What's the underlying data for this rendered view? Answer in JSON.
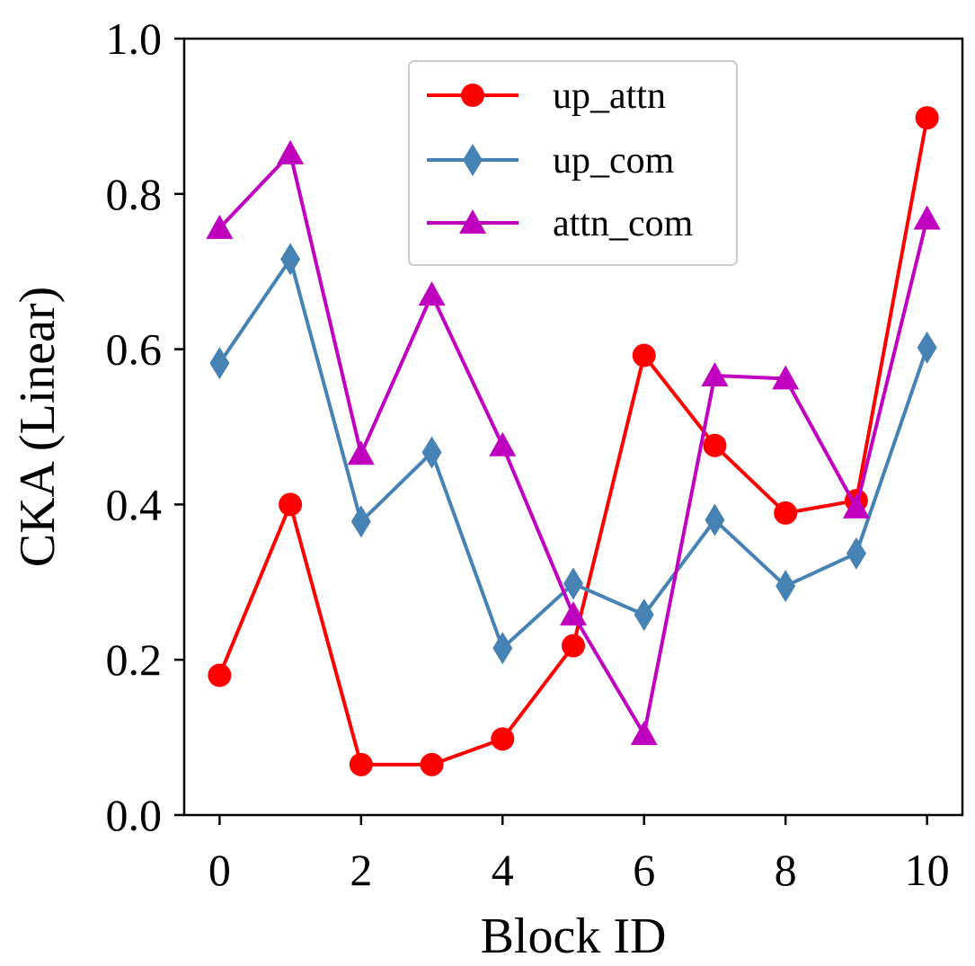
{
  "chart_data": {
    "type": "line",
    "title": "",
    "xlabel": "Block ID",
    "ylabel": "CKA (Linear)",
    "xlim": [
      -0.5,
      10.5
    ],
    "ylim": [
      0.0,
      1.0
    ],
    "x": [
      0,
      1,
      2,
      3,
      4,
      5,
      6,
      7,
      8,
      9,
      10
    ],
    "xticks": [
      0,
      2,
      4,
      6,
      8,
      10
    ],
    "xtick_labels": [
      "0",
      "2",
      "4",
      "6",
      "8",
      "10"
    ],
    "yticks": [
      0.0,
      0.2,
      0.4,
      0.6,
      0.8,
      1.0
    ],
    "ytick_labels": [
      "0.0",
      "0.2",
      "0.4",
      "0.6",
      "0.8",
      "1.0"
    ],
    "grid": false,
    "legend_position": "top-center",
    "series": [
      {
        "name": "up_attn",
        "color": "#ff0000",
        "marker": "circle",
        "values": [
          0.18,
          0.4,
          0.065,
          0.065,
          0.098,
          0.218,
          0.592,
          0.476,
          0.389,
          0.405,
          0.898
        ]
      },
      {
        "name": "up_com",
        "color": "#4682b4",
        "marker": "diamond",
        "values": [
          0.582,
          0.716,
          0.378,
          0.467,
          0.215,
          0.298,
          0.258,
          0.38,
          0.295,
          0.337,
          0.602
        ]
      },
      {
        "name": "attn_com",
        "color": "#bf00bf",
        "marker": "triangle",
        "values": [
          0.756,
          0.852,
          0.465,
          0.67,
          0.476,
          0.258,
          0.104,
          0.566,
          0.562,
          0.396,
          0.768
        ]
      }
    ]
  }
}
